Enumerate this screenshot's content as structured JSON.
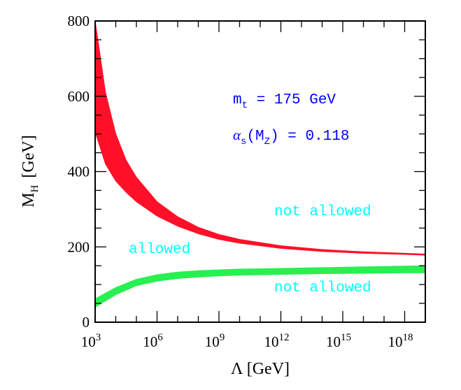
{
  "chart_data": {
    "type": "area",
    "xlabel": "Λ [GeV]",
    "ylabel_main": "M",
    "ylabel_sub": "H",
    "ylabel_unit": "[GeV]",
    "xscale": "log",
    "xlim_log10": [
      3,
      19
    ],
    "ylim": [
      0,
      800
    ],
    "x_ticks": [
      {
        "base": "10",
        "exp": "3",
        "log10": 3
      },
      {
        "base": "10",
        "exp": "6",
        "log10": 6
      },
      {
        "base": "10",
        "exp": "9",
        "log10": 9
      },
      {
        "base": "10",
        "exp": "12",
        "log10": 12
      },
      {
        "base": "10",
        "exp": "15",
        "log10": 15
      },
      {
        "base": "10",
        "exp": "18",
        "log10": 18
      }
    ],
    "y_ticks": [
      "0",
      "200",
      "400",
      "600",
      "800"
    ],
    "series": [
      {
        "name": "",
        "color": "#ff1028",
        "x_log10": [
          3,
          3.5,
          4,
          4.5,
          5,
          6,
          7,
          8,
          9,
          10,
          12,
          14,
          16,
          18,
          19
        ],
        "upper": [
          800,
          610,
          500,
          430,
          385,
          320,
          280,
          252,
          233,
          220,
          203,
          193,
          187,
          183,
          181
        ],
        "lower": [
          505,
          420,
          375,
          345,
          320,
          282,
          255,
          235,
          220,
          210,
          196,
          188,
          183,
          180,
          178
        ]
      },
      {
        "name": "",
        "color": "#28f050",
        "x_log10": [
          3,
          4,
          5,
          6,
          7,
          8,
          9,
          10,
          12,
          14,
          16,
          18,
          19
        ],
        "upper": [
          62,
          92,
          114,
          126,
          133,
          137,
          139,
          141,
          143,
          145,
          147,
          149,
          150
        ],
        "lower": [
          40,
          73,
          97,
          109,
          116,
          120,
          123,
          125,
          127,
          129,
          130,
          131,
          131
        ]
      }
    ],
    "annotations": [
      {
        "id": "mt",
        "text_main": "m",
        "text_sub": "t",
        "text_rest": " = 175 GeV",
        "color": "#0000ff"
      },
      {
        "id": "alpha",
        "text_main": "α",
        "text_sub": "s",
        "text_rest": "(M",
        "text_sub2": "Z",
        "text_rest2": ") = 0.118",
        "color": "#0000ff"
      },
      {
        "id": "upper_not_allowed",
        "text": "not allowed",
        "color": "#00ffff"
      },
      {
        "id": "allowed",
        "text": "allowed",
        "color": "#00ffff"
      },
      {
        "id": "lower_not_allowed",
        "text": "not allowed",
        "color": "#00ffff"
      }
    ]
  }
}
